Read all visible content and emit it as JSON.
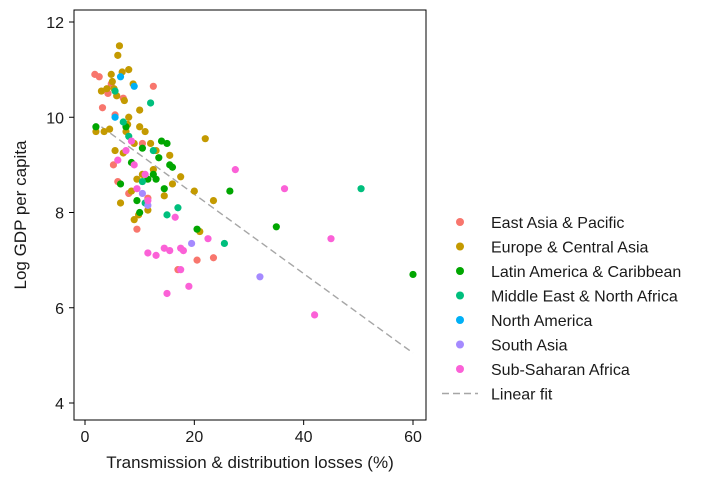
{
  "chart_data": {
    "type": "scatter",
    "title": "",
    "xlabel": "Transmission & distribution losses (%)",
    "ylabel": "Log GDP per capita",
    "xlim": [
      0,
      60
    ],
    "ylim": [
      4,
      12
    ],
    "x_ticks": [
      0,
      20,
      40,
      60
    ],
    "y_ticks": [
      4,
      6,
      8,
      10,
      12
    ],
    "grid": false,
    "legend_position": "right",
    "series": [
      {
        "name": "East Asia & Pacific",
        "color": "#F8766D",
        "points": [
          [
            1.8,
            10.9
          ],
          [
            2.6,
            10.85
          ],
          [
            3.2,
            10.2
          ],
          [
            4.2,
            10.5
          ],
          [
            4.8,
            10.7
          ],
          [
            5.5,
            10.05
          ],
          [
            5.2,
            9.0
          ],
          [
            6.0,
            8.65
          ],
          [
            7.0,
            10.4
          ],
          [
            8.0,
            8.4
          ],
          [
            9.5,
            7.65
          ],
          [
            10.5,
            9.45
          ],
          [
            11.5,
            8.3
          ],
          [
            12.5,
            10.65
          ],
          [
            17.0,
            6.8
          ],
          [
            20.5,
            7.0
          ],
          [
            23.5,
            7.05
          ]
        ]
      },
      {
        "name": "Europe & Central Asia",
        "color": "#C49A00",
        "points": [
          [
            2.0,
            9.7
          ],
          [
            3.0,
            10.55
          ],
          [
            3.5,
            9.7
          ],
          [
            4.0,
            10.6
          ],
          [
            4.5,
            9.75
          ],
          [
            4.8,
            10.9
          ],
          [
            5.0,
            10.75
          ],
          [
            5.3,
            10.6
          ],
          [
            5.5,
            9.3
          ],
          [
            5.8,
            10.45
          ],
          [
            6.0,
            11.3
          ],
          [
            6.3,
            11.5
          ],
          [
            6.5,
            8.2
          ],
          [
            6.8,
            10.95
          ],
          [
            7.0,
            9.25
          ],
          [
            7.2,
            10.35
          ],
          [
            7.5,
            9.7
          ],
          [
            7.8,
            9.85
          ],
          [
            8.0,
            10.0
          ],
          [
            8.0,
            11.0
          ],
          [
            8.5,
            8.45
          ],
          [
            8.8,
            10.7
          ],
          [
            9.0,
            9.45
          ],
          [
            9.0,
            7.85
          ],
          [
            9.5,
            8.7
          ],
          [
            9.8,
            7.95
          ],
          [
            10.0,
            9.8
          ],
          [
            10.0,
            10.15
          ],
          [
            10.5,
            8.8
          ],
          [
            11.0,
            9.7
          ],
          [
            11.5,
            8.05
          ],
          [
            12.0,
            9.45
          ],
          [
            12.5,
            8.9
          ],
          [
            13.0,
            9.3
          ],
          [
            14.5,
            8.35
          ],
          [
            15.5,
            9.2
          ],
          [
            16.0,
            8.6
          ],
          [
            17.5,
            8.75
          ],
          [
            20.0,
            8.45
          ],
          [
            21.0,
            7.6
          ],
          [
            22.0,
            9.55
          ],
          [
            23.5,
            8.25
          ]
        ]
      },
      {
        "name": "Latin America & Caribbean",
        "color": "#00A600",
        "points": [
          [
            2.0,
            9.8
          ],
          [
            6.5,
            8.6
          ],
          [
            7.5,
            9.8
          ],
          [
            8.5,
            9.05
          ],
          [
            9.5,
            8.25
          ],
          [
            10.0,
            8.0
          ],
          [
            10.5,
            9.35
          ],
          [
            11.5,
            8.7
          ],
          [
            12.5,
            8.8
          ],
          [
            13.0,
            8.7
          ],
          [
            13.5,
            9.15
          ],
          [
            14.0,
            9.5
          ],
          [
            14.5,
            8.5
          ],
          [
            15.0,
            9.45
          ],
          [
            15.5,
            9.0
          ],
          [
            16.0,
            8.95
          ],
          [
            20.5,
            7.65
          ],
          [
            26.5,
            8.45
          ],
          [
            35.0,
            7.7
          ],
          [
            60.0,
            6.7
          ]
        ]
      },
      {
        "name": "Middle East & North Africa",
        "color": "#00BF7D",
        "points": [
          [
            5.5,
            10.55
          ],
          [
            7.0,
            9.9
          ],
          [
            8.0,
            9.6
          ],
          [
            10.5,
            8.65
          ],
          [
            11.0,
            8.2
          ],
          [
            12.0,
            10.3
          ],
          [
            12.5,
            9.3
          ],
          [
            15.0,
            7.95
          ],
          [
            17.0,
            8.1
          ],
          [
            25.5,
            7.35
          ],
          [
            50.5,
            8.5
          ]
        ]
      },
      {
        "name": "North America",
        "color": "#00B0F6",
        "points": [
          [
            5.5,
            10.0
          ],
          [
            6.5,
            10.85
          ],
          [
            9.0,
            10.65
          ]
        ]
      },
      {
        "name": "South Asia",
        "color": "#A58AFF",
        "points": [
          [
            10.5,
            8.4
          ],
          [
            11.5,
            8.15
          ],
          [
            19.5,
            7.35
          ],
          [
            32.0,
            6.65
          ]
        ]
      },
      {
        "name": "Sub-Saharan Africa",
        "color": "#FB61D7",
        "points": [
          [
            6.0,
            9.1
          ],
          [
            7.5,
            9.3
          ],
          [
            8.5,
            9.5
          ],
          [
            9.0,
            9.0
          ],
          [
            9.5,
            8.5
          ],
          [
            11.0,
            8.8
          ],
          [
            11.5,
            8.25
          ],
          [
            11.5,
            7.15
          ],
          [
            13.0,
            7.1
          ],
          [
            14.5,
            7.25
          ],
          [
            15.0,
            6.3
          ],
          [
            15.5,
            7.2
          ],
          [
            16.5,
            7.9
          ],
          [
            17.5,
            7.25
          ],
          [
            18.0,
            7.2
          ],
          [
            19.0,
            6.45
          ],
          [
            22.5,
            7.45
          ],
          [
            27.5,
            8.9
          ],
          [
            36.5,
            8.5
          ],
          [
            42.0,
            5.85
          ],
          [
            45.0,
            7.45
          ],
          [
            17.5,
            6.8
          ]
        ]
      }
    ],
    "fit": {
      "name": "Linear fit",
      "color": "#A6A6A6",
      "style": "dashed",
      "x": [
        3,
        60
      ],
      "y": [
        9.8,
        5.05
      ]
    }
  }
}
